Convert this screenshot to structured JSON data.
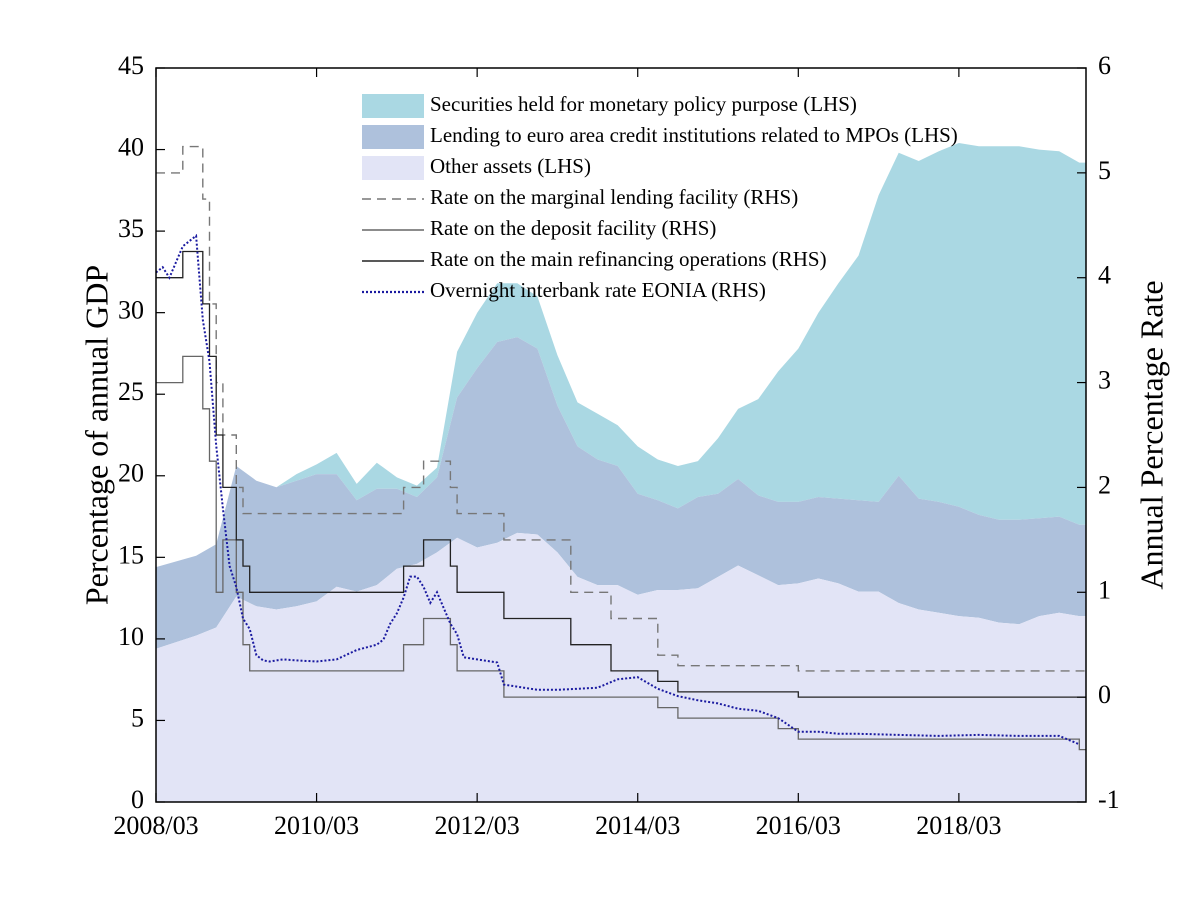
{
  "chart_data": {
    "type": "area",
    "xlabel": "",
    "ylabel_left": "Percentage of annual GDP",
    "ylabel_right": "Annual Percentage Rate",
    "x_tick_labels": [
      "2008/03",
      "2010/03",
      "2012/03",
      "2014/03",
      "2016/03",
      "2018/03"
    ],
    "y_left_ticks": [
      0,
      5,
      10,
      15,
      20,
      25,
      30,
      35,
      40,
      45
    ],
    "y_right_ticks": [
      -1,
      0,
      1,
      2,
      3,
      4,
      5,
      6
    ],
    "ylim_left": [
      0,
      45
    ],
    "ylim_right": [
      -1,
      6
    ],
    "xlim": [
      "2008-03",
      "2019-10"
    ],
    "legend_position": "top-center",
    "grid": false,
    "colors": {
      "securities": "#aad8e3",
      "lending": "#aec1dc",
      "other": "#e2e4f6",
      "mlf": "#777777",
      "deposit": "#666666",
      "mro": "#222222",
      "eonia": "#1a1aa0"
    },
    "legend": [
      {
        "key": "securities",
        "label": "Securities held for monetary policy purpose (LHS)",
        "style": "patch"
      },
      {
        "key": "lending",
        "label": "Lending to euro area credit institutions related to MPOs (LHS)",
        "style": "patch"
      },
      {
        "key": "other",
        "label": "Other assets (LHS)",
        "style": "patch"
      },
      {
        "key": "mlf",
        "label": "Rate on the marginal lending facility (RHS)",
        "style": "dashed"
      },
      {
        "key": "deposit",
        "label": "Rate on the deposit facility (RHS)",
        "style": "solid"
      },
      {
        "key": "mro",
        "label": "Rate on the main refinancing operations (RHS)",
        "style": "solid"
      },
      {
        "key": "eonia",
        "label": "Overnight interbank rate EONIA (RHS)",
        "style": "dotted"
      }
    ],
    "stacked_series_x": [
      "2008-03",
      "2008-09",
      "2008-12",
      "2009-03",
      "2009-06",
      "2009-09",
      "2009-12",
      "2010-03",
      "2010-06",
      "2010-09",
      "2010-12",
      "2011-03",
      "2011-06",
      "2011-09",
      "2011-12",
      "2012-03",
      "2012-06",
      "2012-09",
      "2012-12",
      "2013-03",
      "2013-06",
      "2013-09",
      "2013-12",
      "2014-03",
      "2014-06",
      "2014-09",
      "2014-12",
      "2015-03",
      "2015-06",
      "2015-09",
      "2015-12",
      "2016-03",
      "2016-06",
      "2016-09",
      "2016-12",
      "2017-03",
      "2017-06",
      "2017-09",
      "2017-12",
      "2018-03",
      "2018-06",
      "2018-09",
      "2018-12",
      "2019-03",
      "2019-06",
      "2019-09"
    ],
    "stacked_series": [
      {
        "name": "Other assets (LHS)",
        "values": [
          9.4,
          10.2,
          10.7,
          12.6,
          12.0,
          11.8,
          12.0,
          12.3,
          13.2,
          12.9,
          13.3,
          14.3,
          14.6,
          15.3,
          16.2,
          15.6,
          15.9,
          16.5,
          16.4,
          15.3,
          13.8,
          13.3,
          13.3,
          12.7,
          13.0,
          13.0,
          13.1,
          13.8,
          14.5,
          13.9,
          13.3,
          13.4,
          13.7,
          13.4,
          12.9,
          12.9,
          12.2,
          11.8,
          11.6,
          11.4,
          11.3,
          11.0,
          10.9,
          11.4,
          11.6,
          11.4
        ]
      },
      {
        "name": "Lending to euro area credit institutions related to MPOs (LHS)",
        "values": [
          5.0,
          4.9,
          5.1,
          8.0,
          7.7,
          7.5,
          7.7,
          7.8,
          6.9,
          5.6,
          5.9,
          4.9,
          4.1,
          4.6,
          8.6,
          11.0,
          12.3,
          12.0,
          11.4,
          9.0,
          8.0,
          7.7,
          7.3,
          6.2,
          5.5,
          5.0,
          5.6,
          5.1,
          5.3,
          4.9,
          5.1,
          5.0,
          5.0,
          5.2,
          5.6,
          5.5,
          7.8,
          6.8,
          6.8,
          6.7,
          6.3,
          6.3,
          6.4,
          6.0,
          5.9,
          5.6
        ]
      },
      {
        "name": "Securities held for monetary policy purpose (LHS)",
        "values": [
          0,
          0,
          0,
          0,
          0,
          0,
          0.4,
          0.6,
          1.3,
          1.0,
          1.6,
          0.7,
          0.7,
          0.6,
          2.8,
          3.4,
          3.6,
          3.3,
          3.2,
          3.1,
          2.7,
          2.8,
          2.5,
          2.9,
          2.5,
          2.6,
          2.2,
          3.4,
          4.3,
          5.9,
          8.0,
          9.4,
          11.3,
          13.2,
          15.0,
          18.8,
          19.8,
          20.7,
          21.5,
          22.3,
          22.6,
          22.9,
          22.9,
          22.6,
          22.4,
          22.2
        ]
      }
    ],
    "rate_series": [
      {
        "name": "Rate on the marginal lending facility (RHS)",
        "steps": [
          [
            "2008-03",
            5.0
          ],
          [
            "2008-07",
            5.25
          ],
          [
            "2008-10",
            4.75
          ],
          [
            "2008-11",
            3.75
          ],
          [
            "2008-12",
            3.0
          ],
          [
            "2009-01",
            2.5
          ],
          [
            "2009-03",
            2.0
          ],
          [
            "2009-04",
            1.75
          ],
          [
            "2011-04",
            2.0
          ],
          [
            "2011-07",
            2.25
          ],
          [
            "2011-11",
            2.0
          ],
          [
            "2011-12",
            1.75
          ],
          [
            "2012-07",
            1.5
          ],
          [
            "2013-05",
            1.0
          ],
          [
            "2013-11",
            0.75
          ],
          [
            "2014-06",
            0.4
          ],
          [
            "2014-09",
            0.3
          ],
          [
            "2015-12",
            0.3
          ],
          [
            "2016-03",
            0.25
          ],
          [
            "2019-10",
            0.25
          ]
        ]
      },
      {
        "name": "Rate on the deposit facility (RHS)",
        "steps": [
          [
            "2008-03",
            3.0
          ],
          [
            "2008-07",
            3.25
          ],
          [
            "2008-10",
            2.75
          ],
          [
            "2008-11",
            2.25
          ],
          [
            "2008-12",
            1.0
          ],
          [
            "2009-01",
            1.5
          ],
          [
            "2009-03",
            1.0
          ],
          [
            "2009-04",
            0.5
          ],
          [
            "2009-05",
            0.25
          ],
          [
            "2011-04",
            0.5
          ],
          [
            "2011-07",
            0.75
          ],
          [
            "2011-11",
            0.5
          ],
          [
            "2011-12",
            0.25
          ],
          [
            "2012-07",
            0.0
          ],
          [
            "2014-06",
            -0.1
          ],
          [
            "2014-09",
            -0.2
          ],
          [
            "2015-12",
            -0.3
          ],
          [
            "2016-03",
            -0.4
          ],
          [
            "2019-09",
            -0.5
          ],
          [
            "2019-10",
            -0.5
          ]
        ]
      },
      {
        "name": "Rate on the main refinancing operations (RHS)",
        "steps": [
          [
            "2008-03",
            4.0
          ],
          [
            "2008-07",
            4.25
          ],
          [
            "2008-10",
            3.75
          ],
          [
            "2008-11",
            3.25
          ],
          [
            "2008-12",
            2.5
          ],
          [
            "2009-01",
            2.0
          ],
          [
            "2009-03",
            1.5
          ],
          [
            "2009-04",
            1.25
          ],
          [
            "2009-05",
            1.0
          ],
          [
            "2011-04",
            1.25
          ],
          [
            "2011-07",
            1.5
          ],
          [
            "2011-11",
            1.25
          ],
          [
            "2011-12",
            1.0
          ],
          [
            "2012-07",
            0.75
          ],
          [
            "2013-05",
            0.5
          ],
          [
            "2013-11",
            0.25
          ],
          [
            "2014-06",
            0.15
          ],
          [
            "2014-09",
            0.05
          ],
          [
            "2016-03",
            0.0
          ],
          [
            "2019-10",
            0.0
          ]
        ]
      },
      {
        "name": "Overnight interbank rate EONIA (RHS)",
        "points": [
          [
            "2008-03",
            4.05
          ],
          [
            "2008-04",
            4.1
          ],
          [
            "2008-05",
            4.0
          ],
          [
            "2008-06",
            4.15
          ],
          [
            "2008-07",
            4.3
          ],
          [
            "2008-08",
            4.35
          ],
          [
            "2008-09",
            4.4
          ],
          [
            "2008-10",
            3.6
          ],
          [
            "2008-11",
            3.2
          ],
          [
            "2008-12",
            2.4
          ],
          [
            "2009-01",
            1.8
          ],
          [
            "2009-02",
            1.25
          ],
          [
            "2009-03",
            1.05
          ],
          [
            "2009-04",
            0.75
          ],
          [
            "2009-05",
            0.65
          ],
          [
            "2009-06",
            0.4
          ],
          [
            "2009-07",
            0.35
          ],
          [
            "2009-08",
            0.34
          ],
          [
            "2009-10",
            0.36
          ],
          [
            "2009-12",
            0.35
          ],
          [
            "2010-03",
            0.34
          ],
          [
            "2010-06",
            0.36
          ],
          [
            "2010-09",
            0.45
          ],
          [
            "2010-12",
            0.5
          ],
          [
            "2011-01",
            0.55
          ],
          [
            "2011-02",
            0.7
          ],
          [
            "2011-03",
            0.8
          ],
          [
            "2011-04",
            0.95
          ],
          [
            "2011-05",
            1.15
          ],
          [
            "2011-06",
            1.15
          ],
          [
            "2011-07",
            1.05
          ],
          [
            "2011-08",
            0.9
          ],
          [
            "2011-09",
            1.0
          ],
          [
            "2011-10",
            0.85
          ],
          [
            "2011-11",
            0.7
          ],
          [
            "2011-12",
            0.6
          ],
          [
            "2012-01",
            0.38
          ],
          [
            "2012-03",
            0.36
          ],
          [
            "2012-06",
            0.33
          ],
          [
            "2012-07",
            0.12
          ],
          [
            "2012-12",
            0.07
          ],
          [
            "2013-03",
            0.07
          ],
          [
            "2013-06",
            0.08
          ],
          [
            "2013-09",
            0.09
          ],
          [
            "2013-12",
            0.17
          ],
          [
            "2014-03",
            0.19
          ],
          [
            "2014-06",
            0.08
          ],
          [
            "2014-09",
            0.01
          ],
          [
            "2014-12",
            -0.03
          ],
          [
            "2015-03",
            -0.06
          ],
          [
            "2015-06",
            -0.11
          ],
          [
            "2015-09",
            -0.13
          ],
          [
            "2015-12",
            -0.2
          ],
          [
            "2016-03",
            -0.33
          ],
          [
            "2016-06",
            -0.33
          ],
          [
            "2016-09",
            -0.35
          ],
          [
            "2016-12",
            -0.35
          ],
          [
            "2017-06",
            -0.36
          ],
          [
            "2017-12",
            -0.37
          ],
          [
            "2018-06",
            -0.36
          ],
          [
            "2018-12",
            -0.37
          ],
          [
            "2019-06",
            -0.37
          ],
          [
            "2019-09",
            -0.45
          ]
        ]
      }
    ]
  }
}
